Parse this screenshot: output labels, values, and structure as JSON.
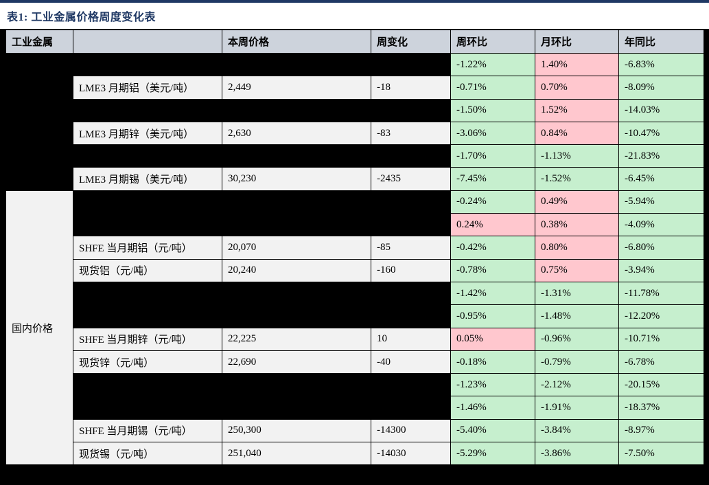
{
  "title": "表1:  工业金属价格周度变化表",
  "colors": {
    "accent_navy": "#1f3864",
    "header_bg": "#cdd3dc",
    "cell_bg": "#f2f2f2",
    "positive_pink": "#ffc7ce",
    "negative_green": "#c6efce",
    "redacted_black": "#000000"
  },
  "table": {
    "headers": [
      "工业金属",
      "",
      "本周价格",
      "周变化",
      "周环比",
      "月环比",
      "年同比"
    ],
    "groups": {
      "overseas": {
        "label": "",
        "redacted": true,
        "rows": "1-6"
      },
      "domestic": {
        "label": "国内价格",
        "redacted": false,
        "rows": "7-18"
      }
    },
    "rows": [
      {
        "cells": [
          {
            "type": "black",
            "value": ""
          },
          {
            "type": "black",
            "value": ""
          },
          {
            "type": "black",
            "value": ""
          },
          {
            "type": "green",
            "value": "-1.22%"
          },
          {
            "type": "pink",
            "value": "1.40%"
          },
          {
            "type": "green",
            "value": "-6.83%"
          }
        ]
      },
      {
        "cells": [
          {
            "type": "text",
            "value": "LME3 月期铝（美元/吨）"
          },
          {
            "type": "text",
            "value": "2,449"
          },
          {
            "type": "text",
            "value": "-18"
          },
          {
            "type": "green",
            "value": "-0.71%"
          },
          {
            "type": "pink",
            "value": "0.70%"
          },
          {
            "type": "green",
            "value": "-8.09%"
          }
        ]
      },
      {
        "cells": [
          {
            "type": "black",
            "value": ""
          },
          {
            "type": "black",
            "value": ""
          },
          {
            "type": "black",
            "value": ""
          },
          {
            "type": "green",
            "value": "-1.50%"
          },
          {
            "type": "pink",
            "value": "1.52%"
          },
          {
            "type": "green",
            "value": "-14.03%"
          }
        ]
      },
      {
        "cells": [
          {
            "type": "text",
            "value": "LME3 月期锌（美元/吨）"
          },
          {
            "type": "text",
            "value": "2,630"
          },
          {
            "type": "text",
            "value": "-83"
          },
          {
            "type": "green",
            "value": "-3.06%"
          },
          {
            "type": "pink",
            "value": "0.84%"
          },
          {
            "type": "green",
            "value": "-10.47%"
          }
        ]
      },
      {
        "cells": [
          {
            "type": "black",
            "value": ""
          },
          {
            "type": "black",
            "value": ""
          },
          {
            "type": "black",
            "value": ""
          },
          {
            "type": "green",
            "value": "-1.70%"
          },
          {
            "type": "green",
            "value": "-1.13%"
          },
          {
            "type": "green",
            "value": "-21.83%"
          }
        ]
      },
      {
        "cells": [
          {
            "type": "text",
            "value": "LME3 月期锡（美元/吨）"
          },
          {
            "type": "text",
            "value": "30,230"
          },
          {
            "type": "text",
            "value": "-2435"
          },
          {
            "type": "green",
            "value": "-7.45%"
          },
          {
            "type": "green",
            "value": "-1.52%"
          },
          {
            "type": "green",
            "value": "-6.45%"
          }
        ]
      },
      {
        "cells": [
          {
            "type": "black",
            "value": ""
          },
          {
            "type": "black",
            "value": ""
          },
          {
            "type": "black",
            "value": ""
          },
          {
            "type": "green",
            "value": "-0.24%"
          },
          {
            "type": "pink",
            "value": "0.49%"
          },
          {
            "type": "green",
            "value": "-5.94%"
          }
        ]
      },
      {
        "cells": [
          {
            "type": "black",
            "value": ""
          },
          {
            "type": "black",
            "value": ""
          },
          {
            "type": "black",
            "value": ""
          },
          {
            "type": "pink",
            "value": "0.24%"
          },
          {
            "type": "pink",
            "value": "0.38%"
          },
          {
            "type": "green",
            "value": "-4.09%"
          }
        ]
      },
      {
        "cells": [
          {
            "type": "text",
            "value": "SHFE 当月期铝（元/吨）"
          },
          {
            "type": "text",
            "value": "20,070"
          },
          {
            "type": "text",
            "value": "-85"
          },
          {
            "type": "green",
            "value": "-0.42%"
          },
          {
            "type": "pink",
            "value": "0.80%"
          },
          {
            "type": "green",
            "value": "-6.80%"
          }
        ]
      },
      {
        "cells": [
          {
            "type": "text",
            "value": "现货铝（元/吨）"
          },
          {
            "type": "text",
            "value": "20,240"
          },
          {
            "type": "text",
            "value": "-160"
          },
          {
            "type": "green",
            "value": "-0.78%"
          },
          {
            "type": "pink",
            "value": "0.75%"
          },
          {
            "type": "green",
            "value": "-3.94%"
          }
        ]
      },
      {
        "cells": [
          {
            "type": "black",
            "value": ""
          },
          {
            "type": "black",
            "value": ""
          },
          {
            "type": "black",
            "value": ""
          },
          {
            "type": "green",
            "value": "-1.42%"
          },
          {
            "type": "green",
            "value": "-1.31%"
          },
          {
            "type": "green",
            "value": "-11.78%"
          }
        ]
      },
      {
        "cells": [
          {
            "type": "black",
            "value": ""
          },
          {
            "type": "black",
            "value": ""
          },
          {
            "type": "black",
            "value": ""
          },
          {
            "type": "green",
            "value": "-0.95%"
          },
          {
            "type": "green",
            "value": "-1.48%"
          },
          {
            "type": "green",
            "value": "-12.20%"
          }
        ]
      },
      {
        "cells": [
          {
            "type": "text",
            "value": "SHFE 当月期锌（元/吨）"
          },
          {
            "type": "text",
            "value": "22,225"
          },
          {
            "type": "text",
            "value": "10"
          },
          {
            "type": "pink",
            "value": "0.05%"
          },
          {
            "type": "green",
            "value": "-0.96%"
          },
          {
            "type": "green",
            "value": "-10.71%"
          }
        ]
      },
      {
        "cells": [
          {
            "type": "text",
            "value": "现货锌（元/吨）"
          },
          {
            "type": "text",
            "value": "22,690"
          },
          {
            "type": "text",
            "value": "-40"
          },
          {
            "type": "green",
            "value": "-0.18%"
          },
          {
            "type": "green",
            "value": "-0.79%"
          },
          {
            "type": "green",
            "value": "-6.78%"
          }
        ]
      },
      {
        "cells": [
          {
            "type": "black",
            "value": ""
          },
          {
            "type": "black",
            "value": ""
          },
          {
            "type": "black",
            "value": ""
          },
          {
            "type": "green",
            "value": "-1.23%"
          },
          {
            "type": "green",
            "value": "-2.12%"
          },
          {
            "type": "green",
            "value": "-20.15%"
          }
        ]
      },
      {
        "cells": [
          {
            "type": "black",
            "value": ""
          },
          {
            "type": "black",
            "value": ""
          },
          {
            "type": "black",
            "value": ""
          },
          {
            "type": "green",
            "value": "-1.46%"
          },
          {
            "type": "green",
            "value": "-1.91%"
          },
          {
            "type": "green",
            "value": "-18.37%"
          }
        ]
      },
      {
        "cells": [
          {
            "type": "text",
            "value": "SHFE 当月期锡（元/吨）"
          },
          {
            "type": "text",
            "value": "250,300"
          },
          {
            "type": "text",
            "value": "-14300"
          },
          {
            "type": "green",
            "value": "-5.40%"
          },
          {
            "type": "green",
            "value": "-3.84%"
          },
          {
            "type": "green",
            "value": "-8.97%"
          }
        ]
      },
      {
        "cells": [
          {
            "type": "text",
            "value": "现货锡（元/吨）"
          },
          {
            "type": "text",
            "value": "251,040"
          },
          {
            "type": "text",
            "value": "-14030"
          },
          {
            "type": "green",
            "value": "-5.29%"
          },
          {
            "type": "green",
            "value": "-3.86%"
          },
          {
            "type": "green",
            "value": "-7.50%"
          }
        ]
      }
    ]
  }
}
